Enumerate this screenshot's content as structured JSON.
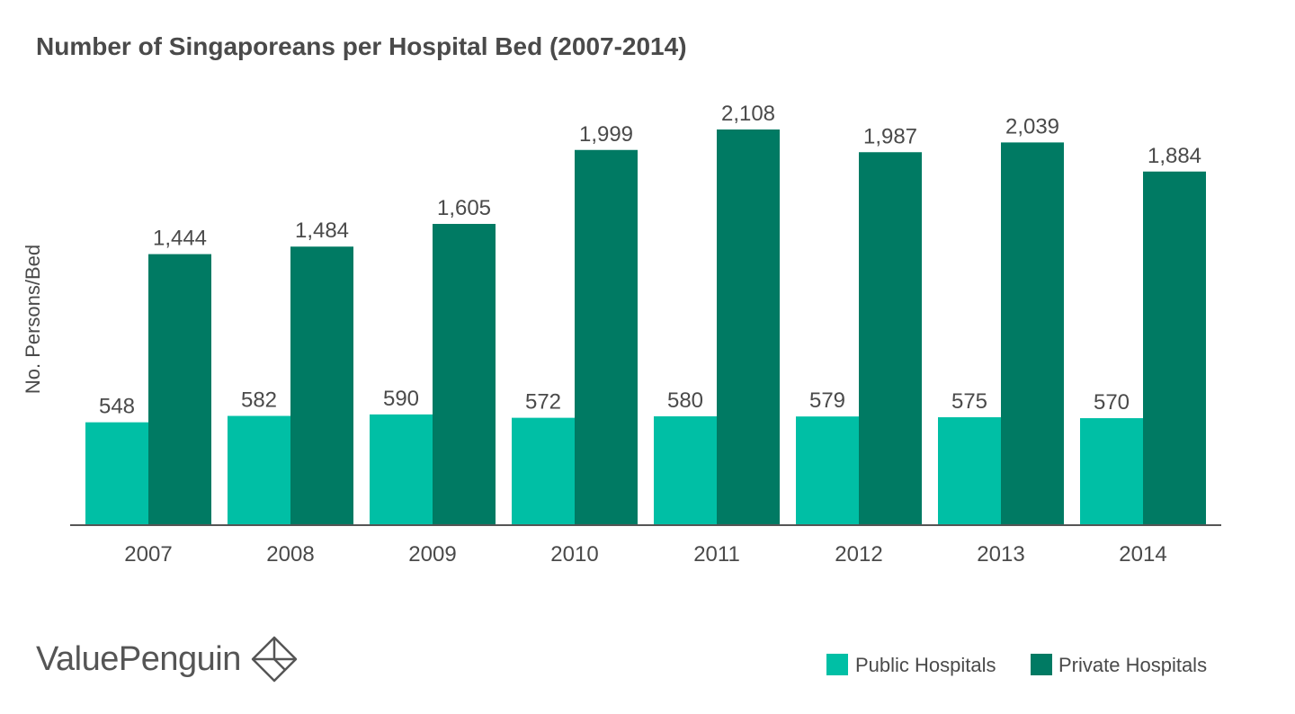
{
  "brand": {
    "name": "ValuePenguin",
    "logo_icon": "penguin-diamond-logo-icon"
  },
  "colors": {
    "public": "#00bfa5",
    "private": "#007a63",
    "text": "#4a4a4a",
    "axis": "#555555"
  },
  "chart_data": {
    "type": "bar",
    "title": "Number of Singaporeans per Hospital Bed (2007-2014)",
    "ylabel": "No. Persons/Bed",
    "xlabel": "",
    "categories": [
      "2007",
      "2008",
      "2009",
      "2010",
      "2011",
      "2012",
      "2013",
      "2014"
    ],
    "series": [
      {
        "name": "Public Hospitals",
        "values": [
          548,
          582,
          590,
          572,
          580,
          579,
          575,
          570
        ],
        "labels": [
          "548",
          "582",
          "590",
          "572",
          "580",
          "579",
          "575",
          "570"
        ]
      },
      {
        "name": "Private Hospitals",
        "values": [
          1444,
          1484,
          1605,
          1999,
          2108,
          1987,
          2039,
          1884
        ],
        "labels": [
          "1,444",
          "1,484",
          "1,605",
          "1,999",
          "2,108",
          "1,987",
          "2,039",
          "1,884"
        ]
      }
    ],
    "ylim": [
      0,
      2108
    ],
    "grid": false,
    "legend_position": "bottom-right"
  }
}
